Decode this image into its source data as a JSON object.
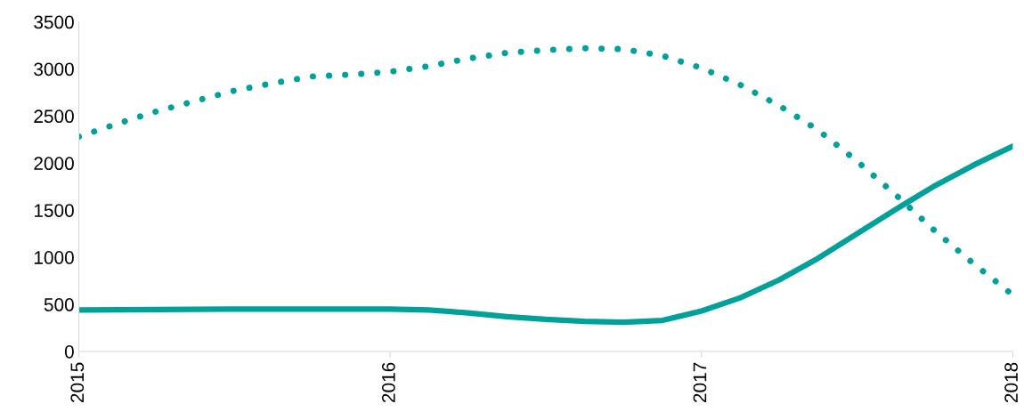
{
  "chart_data": {
    "type": "line",
    "series": [
      {
        "color": "#00a19a",
        "line_style": "dotted",
        "x": [
          2015,
          2015.125,
          2015.25,
          2015.375,
          2015.5,
          2015.625,
          2015.75,
          2015.875,
          2016,
          2016.125,
          2016.25,
          2016.375,
          2016.5,
          2016.625,
          2016.75,
          2016.875,
          2017,
          2017.125,
          2017.25,
          2017.375,
          2017.5,
          2017.625,
          2017.75,
          2017.875,
          2018
        ],
        "values": [
          2280,
          2420,
          2550,
          2660,
          2770,
          2850,
          2920,
          2940,
          2970,
          3030,
          3110,
          3170,
          3200,
          3220,
          3210,
          3140,
          3010,
          2830,
          2610,
          2350,
          2020,
          1660,
          1280,
          930,
          600
        ]
      },
      {
        "color": "#00a19a",
        "line_style": "solid",
        "x": [
          2015,
          2015.25,
          2015.5,
          2015.75,
          2016,
          2016.125,
          2016.25,
          2016.375,
          2016.5,
          2016.625,
          2016.75,
          2016.875,
          2017,
          2017.125,
          2017.25,
          2017.375,
          2017.5,
          2017.625,
          2017.75,
          2017.875,
          2018
        ],
        "values": [
          440,
          445,
          450,
          450,
          450,
          440,
          410,
          370,
          340,
          320,
          310,
          330,
          430,
          570,
          760,
          990,
          1250,
          1510,
          1760,
          1980,
          2180
        ]
      }
    ],
    "xlim": [
      2015,
      2018
    ],
    "xticks": [
      2015,
      2016,
      2017,
      2018
    ],
    "ylim": [
      0,
      3500
    ],
    "yticks": [
      0,
      500,
      1000,
      1500,
      2000,
      2500,
      3000,
      3500
    ],
    "grid": false,
    "legend": false,
    "marker": "none"
  }
}
